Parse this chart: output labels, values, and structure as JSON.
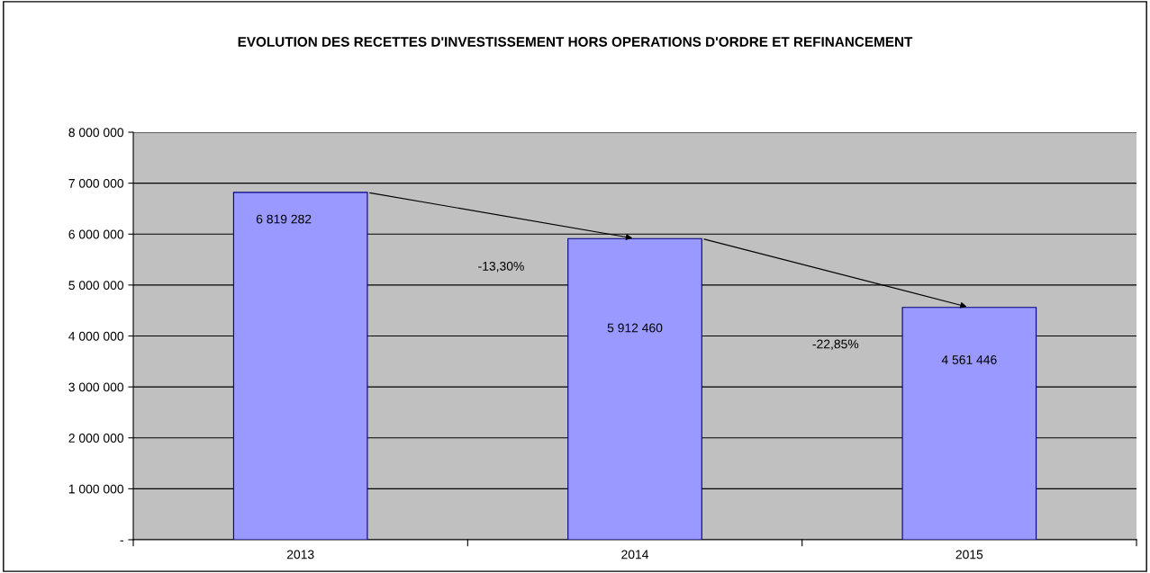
{
  "chart_data": {
    "type": "bar",
    "title": "EVOLUTION DES RECETTES D'INVESTISSEMENT HORS OPERATIONS D'ORDRE ET REFINANCEMENT",
    "categories": [
      "2013",
      "2014",
      "2015"
    ],
    "values": [
      6819282,
      5912460,
      4561446
    ],
    "value_labels": [
      "6 819 282",
      "5 912 460",
      "4 561 446"
    ],
    "color": "#9999ff",
    "ylim": [
      0,
      8000000
    ],
    "yticks": [
      {
        "value": 0,
        "label": "-"
      },
      {
        "value": 1000000,
        "label": "1 000 000"
      },
      {
        "value": 2000000,
        "label": "2 000 000"
      },
      {
        "value": 3000000,
        "label": "3 000 000"
      },
      {
        "value": 4000000,
        "label": "4 000 000"
      },
      {
        "value": 5000000,
        "label": "5 000 000"
      },
      {
        "value": 6000000,
        "label": "6 000 000"
      },
      {
        "value": 7000000,
        "label": "7 000 000"
      },
      {
        "value": 8000000,
        "label": "8 000 000"
      }
    ],
    "grid": "y",
    "annotations": [
      "-13,30%",
      "-22,85%"
    ]
  }
}
